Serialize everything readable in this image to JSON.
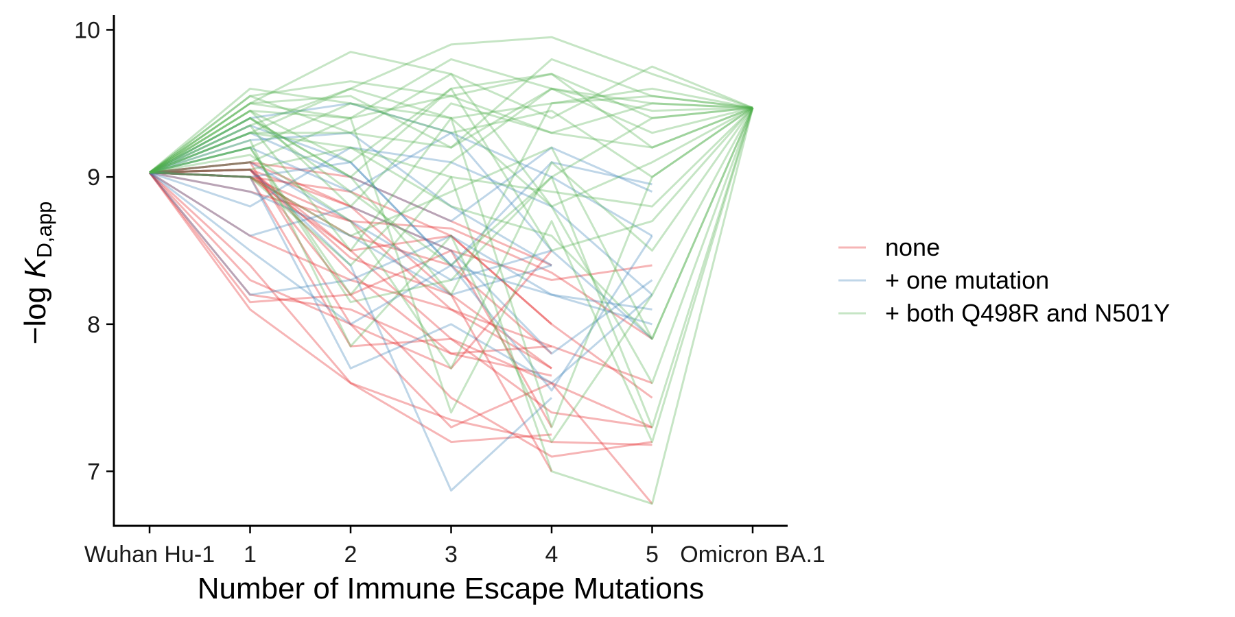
{
  "chart_data": {
    "type": "line",
    "title": "",
    "xlabel": "Number of Immune Escape Mutations",
    "ylabel": {
      "prefix": "−log ",
      "symbol": "K",
      "subscript": "D,app"
    },
    "x_categories": [
      "Wuhan Hu-1",
      "1",
      "2",
      "3",
      "4",
      "5",
      "Omicron BA.1"
    ],
    "y_ticks": [
      "7",
      "8",
      "9",
      "10"
    ],
    "ylim": [
      6.63,
      10.1
    ],
    "grid": false,
    "legend_position": "right",
    "start_value": 9.03,
    "end_value": 9.47,
    "series": [
      {
        "name": "none",
        "color": "#e41a1c",
        "paths": [
          [
            9.03,
            9.1,
            9.0,
            8.7,
            8.4
          ],
          [
            9.03,
            9.05,
            8.8,
            8.2,
            7.7
          ],
          [
            9.03,
            9.0,
            8.5,
            7.9,
            7.4,
            7.3
          ],
          [
            9.03,
            8.6,
            8.3,
            8.1,
            7.7
          ],
          [
            9.03,
            8.2,
            8.1,
            7.8,
            7.85
          ],
          [
            9.03,
            8.1,
            7.6,
            7.2,
            7.25
          ],
          [
            9.03,
            9.05,
            8.45,
            8.2,
            7.0
          ],
          [
            9.03,
            8.3,
            8.0,
            7.3,
            7.6,
            6.78
          ],
          [
            9.03,
            9.0,
            8.9,
            8.6,
            8.0
          ],
          [
            9.03,
            9.05,
            8.2,
            7.5,
            7.1,
            7.2
          ],
          [
            9.03,
            8.9,
            8.7,
            8.65,
            8.35,
            7.9
          ],
          [
            9.03,
            9.0,
            8.6,
            8.4,
            7.8
          ],
          [
            9.03,
            9.05,
            8.35,
            7.8,
            7.65
          ],
          [
            9.03,
            9.1,
            8.8,
            8.5,
            8.3,
            8.4
          ],
          [
            9.03,
            9.0,
            8.7,
            8.1,
            7.85,
            7.6
          ],
          [
            9.03,
            8.15,
            8.2,
            8.5,
            7.3
          ],
          [
            9.03,
            9.05,
            8.5,
            8.6,
            8.0,
            7.5
          ],
          [
            9.03,
            9.0,
            7.85,
            7.9,
            7.6,
            7.3
          ],
          [
            9.03,
            9.1,
            8.0,
            7.7,
            8.5
          ],
          [
            9.03,
            8.4,
            7.6,
            7.35,
            7.2,
            7.18
          ]
        ]
      },
      {
        "name": "+ one mutation",
        "color": "#377eb8",
        "paths": [
          [
            9.03,
            9.35,
            9.1,
            8.4,
            8.2,
            8.0
          ],
          [
            9.03,
            9.3,
            9.0,
            8.7,
            9.2,
            8.9
          ],
          [
            9.03,
            8.9,
            8.6,
            8.2,
            8.4
          ],
          [
            9.03,
            8.8,
            9.2,
            9.1,
            8.8,
            8.2
          ],
          [
            9.03,
            9.05,
            8.4,
            6.87,
            7.5
          ],
          [
            9.03,
            8.6,
            8.8,
            8.5,
            7.8,
            8.3
          ],
          [
            9.03,
            9.4,
            9.5,
            9.3,
            9.0,
            8.6
          ],
          [
            9.03,
            9.2,
            8.9,
            9.3,
            8.5
          ],
          [
            9.03,
            8.2,
            8.3,
            8.6,
            8.2,
            8.1
          ],
          [
            9.03,
            9.0,
            7.7,
            8.0,
            7.6,
            8.2
          ],
          [
            9.03,
            9.1,
            8.7,
            8.3,
            8.5,
            7.9
          ],
          [
            9.03,
            9.25,
            9.3,
            8.8,
            8.4
          ],
          [
            9.03,
            8.5,
            8.0,
            8.4,
            7.55,
            8.6
          ],
          [
            9.03,
            9.0,
            9.1,
            8.4,
            9.1,
            8.95
          ]
        ]
      },
      {
        "name": "+ both Q498R and N501Y",
        "color": "#4daf4a",
        "paths": [
          [
            9.03,
            9.6,
            9.5,
            9.4,
            9.5,
            9.6,
            9.47
          ],
          [
            9.03,
            9.5,
            9.85,
            9.7,
            9.4,
            9.75,
            9.47
          ],
          [
            9.03,
            9.3,
            9.6,
            9.9,
            9.95,
            9.7,
            9.47
          ],
          [
            9.03,
            9.1,
            9.4,
            9.8,
            9.6,
            9.5,
            9.47
          ],
          [
            9.03,
            9.4,
            9.0,
            9.6,
            9.7,
            9.4,
            9.47
          ],
          [
            9.03,
            9.55,
            9.3,
            9.2,
            9.8,
            9.55,
            9.47
          ],
          [
            9.03,
            9.45,
            8.8,
            9.5,
            9.3,
            9.2,
            9.47
          ],
          [
            9.03,
            9.2,
            8.2,
            9.0,
            8.9,
            8.8,
            9.47
          ],
          [
            9.03,
            9.35,
            9.6,
            9.4,
            8.8,
            9.1,
            9.47
          ],
          [
            9.03,
            9.0,
            8.6,
            8.9,
            9.2,
            7.9,
            9.47
          ],
          [
            9.03,
            9.5,
            9.4,
            7.4,
            8.7,
            7.2,
            9.47
          ],
          [
            9.03,
            9.3,
            9.2,
            9.0,
            7.0,
            6.78,
            9.47
          ],
          [
            9.03,
            9.4,
            8.9,
            8.4,
            9.0,
            7.3,
            9.47
          ],
          [
            9.03,
            9.2,
            9.5,
            9.3,
            9.45,
            9.0,
            9.47
          ],
          [
            9.03,
            9.45,
            9.1,
            9.6,
            8.5,
            8.7,
            9.47
          ],
          [
            9.03,
            9.0,
            8.4,
            9.1,
            9.6,
            9.3,
            9.47
          ],
          [
            9.03,
            9.55,
            9.65,
            9.55,
            9.7,
            9.2,
            9.47
          ],
          [
            9.03,
            9.25,
            7.85,
            8.6,
            7.2,
            8.2,
            9.47
          ],
          [
            9.03,
            9.4,
            9.0,
            8.2,
            9.5,
            9.55,
            9.47
          ],
          [
            9.03,
            9.3,
            9.3,
            9.7,
            8.8,
            7.6,
            9.47
          ],
          [
            9.03,
            9.15,
            8.7,
            7.7,
            9.1,
            8.5,
            9.47
          ],
          [
            9.03,
            9.5,
            9.55,
            9.2,
            9.6,
            9.45,
            9.47
          ],
          [
            9.03,
            9.35,
            8.5,
            9.4,
            7.3,
            9.0,
            9.47
          ],
          [
            9.03,
            9.05,
            9.2,
            8.8,
            8.6,
            7.9,
            9.47
          ],
          [
            9.03,
            9.45,
            9.4,
            9.55,
            9.3,
            9.5,
            9.47
          ],
          [
            9.03,
            9.2,
            8.15,
            8.3,
            9.0,
            9.4,
            9.47
          ]
        ]
      }
    ]
  }
}
